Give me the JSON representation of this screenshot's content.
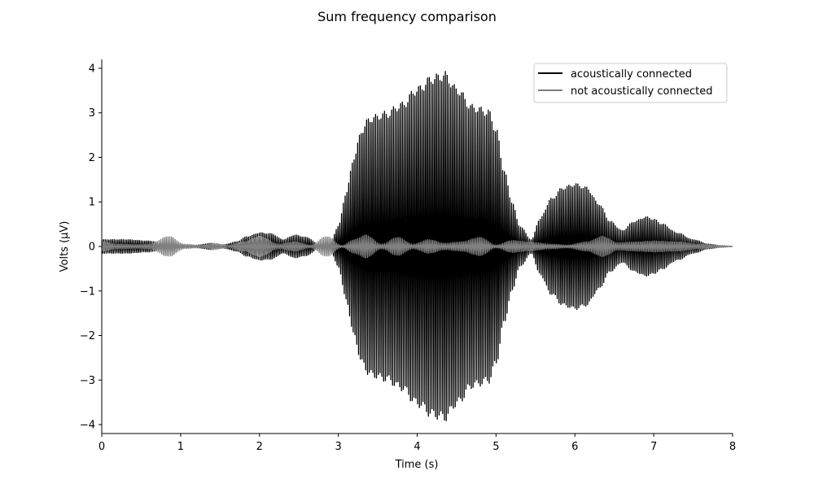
{
  "chart_data": {
    "type": "line",
    "title": "Sum frequency comparison",
    "xlabel": "Time (s)",
    "ylabel": "Volts (μV)",
    "xlim": [
      0,
      8
    ],
    "ylim": [
      -4.2,
      4.2
    ],
    "xticks": [
      0,
      1,
      2,
      3,
      4,
      5,
      6,
      7,
      8
    ],
    "xtick_labels": [
      "0",
      "1",
      "2",
      "3",
      "4",
      "5",
      "6",
      "7",
      "8"
    ],
    "yticks": [
      -4,
      -3,
      -2,
      -1,
      0,
      1,
      2,
      3,
      4
    ],
    "ytick_labels": [
      "−4",
      "−3",
      "−2",
      "−1",
      "0",
      "1",
      "2",
      "3",
      "4"
    ],
    "grid": false,
    "legend_position": "top-right",
    "series": [
      {
        "name": "acoustically connected",
        "color": "#000000",
        "style": "rapid oscillation, symmetric envelope",
        "envelope": {
          "t": [
            0,
            0.3,
            0.6,
            0.75,
            0.9,
            1.05,
            1.2,
            1.4,
            1.55,
            1.7,
            1.85,
            2.0,
            2.15,
            2.3,
            2.45,
            2.6,
            2.75,
            2.9,
            3.0,
            3.1,
            3.2,
            3.3,
            3.4,
            3.6,
            3.8,
            4.0,
            4.2,
            4.35,
            4.5,
            4.7,
            4.9,
            5.0,
            5.1,
            5.2,
            5.3,
            5.45,
            5.55,
            5.7,
            5.85,
            6.0,
            6.15,
            6.3,
            6.45,
            6.6,
            6.75,
            6.9,
            7.0,
            7.1,
            7.3,
            7.5,
            7.7,
            7.85,
            8.0
          ],
          "amplitude": [
            0.15,
            0.15,
            0.12,
            0.08,
            0.04,
            0.04,
            0.03,
            0.07,
            0.04,
            0.1,
            0.22,
            0.3,
            0.28,
            0.15,
            0.25,
            0.2,
            0.05,
            0.1,
            0.45,
            1.2,
            2.0,
            2.6,
            2.85,
            2.95,
            3.15,
            3.5,
            3.75,
            3.82,
            3.5,
            3.1,
            3.0,
            2.6,
            1.7,
            1.0,
            0.45,
            0.15,
            0.6,
            1.05,
            1.3,
            1.38,
            1.3,
            0.95,
            0.55,
            0.35,
            0.55,
            0.65,
            0.6,
            0.5,
            0.3,
            0.15,
            0.05,
            0.02,
            0.0
          ]
        }
      },
      {
        "name": "not acoustically connected",
        "color": "#808080",
        "style": "rapid oscillation, symmetric envelope",
        "envelope": {
          "t": [
            0,
            0.2,
            0.45,
            0.6,
            0.85,
            1.05,
            1.25,
            1.45,
            1.6,
            1.8,
            2.0,
            2.25,
            2.45,
            2.65,
            2.85,
            3.05,
            3.2,
            3.35,
            3.55,
            3.75,
            3.95,
            4.15,
            4.35,
            4.55,
            4.8,
            5.0,
            5.2,
            5.45,
            5.7,
            5.9,
            6.15,
            6.35,
            6.55,
            6.75,
            7.0,
            7.3,
            7.55,
            7.8,
            8.0
          ],
          "amplitude": [
            0.1,
            0.05,
            0.04,
            0.05,
            0.22,
            0.05,
            0.02,
            0.06,
            0.02,
            0.1,
            0.22,
            0.05,
            0.1,
            0.03,
            0.22,
            0.02,
            0.15,
            0.25,
            0.05,
            0.2,
            0.05,
            0.15,
            0.07,
            0.1,
            0.2,
            0.03,
            0.13,
            0.09,
            0.05,
            0.03,
            0.1,
            0.22,
            0.08,
            0.1,
            0.12,
            0.1,
            0.05,
            0.02,
            0.0
          ]
        }
      }
    ]
  }
}
